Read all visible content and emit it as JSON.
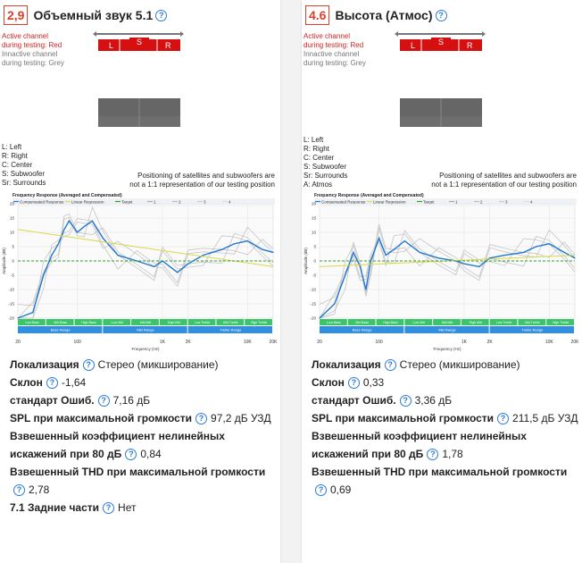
{
  "cards": [
    {
      "score": "2,9",
      "title": "Объемный звук 5.1",
      "active_label_1": "Active channel",
      "active_label_2": "during testing: Red",
      "inactive_label_1": "Innactive channel",
      "inactive_label_2": "during testing: Grey",
      "channels": [
        "L",
        "S",
        "R"
      ],
      "abbr": [
        "L: Left",
        "R: Right",
        "C: Center",
        "S: Subwoofer",
        "Sr: Surrounds"
      ],
      "note_1": "Positioning of satellites and subwoofers are",
      "note_2": "not a 1:1 representation of our testing position",
      "specs": [
        {
          "label": "Локализация",
          "value": "Стерео (микширование)"
        },
        {
          "label": "Склон",
          "value": "-1,64"
        },
        {
          "label": "стандарт Ошиб.",
          "value": "7,16 дБ"
        },
        {
          "label": "SPL при максимальной громкости",
          "value": "97,2 дБ УЗД"
        },
        {
          "label": "Взвешенный коэффициент нелинейных искажений при 80 дБ",
          "value": "0,84"
        },
        {
          "label": "Взвешенный THD при максимальной громкости",
          "value": "2,78"
        },
        {
          "label": "7.1 Задние части",
          "value": "Нет"
        }
      ]
    },
    {
      "score": "4.6",
      "title": "Высота (Атмос)",
      "active_label_1": "Active channel",
      "active_label_2": "during testing: Red",
      "inactive_label_1": "Innactive channel",
      "inactive_label_2": "during testing: Grey",
      "channels": [
        "L",
        "S",
        "R"
      ],
      "abbr": [
        "L: Left",
        "R: Right",
        "C: Center",
        "S: Subwoofer",
        "Sr: Surrounds",
        "A: Atmos"
      ],
      "note_1": "Positioning of satellites and subwoofers are",
      "note_2": "not a 1:1 representation of our testing position",
      "specs": [
        {
          "label": "Локализация",
          "value": "Стерео (микширование)"
        },
        {
          "label": "Склон",
          "value": "0,33"
        },
        {
          "label": "стандарт Ошиб.",
          "value": "3,36 дБ"
        },
        {
          "label": "SPL при максимальной громкости",
          "value": "211,5 дБ УЗД"
        },
        {
          "label": "Взвешенный коэффициент нелинейных искажений при 80 дБ",
          "value": "1,78"
        },
        {
          "label": "Взвешенный THD при максимальной громкости",
          "value": "0,69"
        }
      ]
    }
  ],
  "chart_data": [
    {
      "type": "line",
      "title": "Frequency Response (Averaged and Compensated)",
      "xlabel": "Frequency (Hz)",
      "ylabel": "Amplitude (dB)",
      "x_scale": "log",
      "xlim": [
        20,
        20000
      ],
      "ylim": [
        -20,
        20
      ],
      "x_ticks": [
        "20",
        "100",
        "1K",
        "2K",
        "10K",
        "20K"
      ],
      "y_ticks": [
        "20",
        "15",
        "10",
        "5",
        "0",
        "-5",
        "-10",
        "-15",
        "-20"
      ],
      "legend": [
        "Compensated Response",
        "Linear Regression",
        "Target",
        "1",
        "2",
        "3",
        "4"
      ],
      "bands_top": [
        "Low Bass",
        "Mid Bass",
        "High Bass",
        "Low Mid",
        "Mid Mid",
        "High Mid",
        "Low Treble",
        "Mid Treble",
        "High Treble"
      ],
      "bands_bottom": [
        "Bass Range",
        "Mid Range",
        "Treble Range"
      ],
      "series": [
        {
          "name": "Compensated Response",
          "color": "#1f77d0",
          "x": [
            20,
            30,
            40,
            50,
            60,
            70,
            80,
            100,
            120,
            150,
            200,
            300,
            500,
            800,
            1000,
            1500,
            2000,
            3000,
            5000,
            7000,
            10000,
            15000,
            20000
          ],
          "values": [
            -20,
            -18,
            -5,
            2,
            6,
            11,
            14,
            10,
            12,
            14,
            8,
            2,
            0,
            -2,
            0,
            -4,
            -1,
            2,
            4,
            6,
            7,
            4,
            3
          ]
        },
        {
          "name": "Linear Regression",
          "color": "#d8d84a",
          "x": [
            20,
            20000
          ],
          "values": [
            11,
            -2
          ]
        },
        {
          "name": "Target",
          "color": "#2ca02c",
          "x": [
            20,
            20000
          ],
          "values": [
            0,
            0
          ]
        }
      ]
    },
    {
      "type": "line",
      "title": "Frequency Response (Averaged and Compensated)",
      "xlabel": "Frequency (Hz)",
      "ylabel": "Amplitude (dB)",
      "x_scale": "log",
      "xlim": [
        20,
        20000
      ],
      "ylim": [
        -20,
        20
      ],
      "x_ticks": [
        "20",
        "100",
        "1K",
        "2K",
        "10K",
        "20K"
      ],
      "y_ticks": [
        "20",
        "15",
        "10",
        "5",
        "0",
        "-5",
        "-10",
        "-15",
        "-20"
      ],
      "legend": [
        "Compensated Response",
        "Linear Regression",
        "Target",
        "1",
        "2",
        "3",
        "4"
      ],
      "bands_top": [
        "Low Bass",
        "Mid Bass",
        "High Bass",
        "Low Mid",
        "Mid Mid",
        "High Mid",
        "Low Treble",
        "Mid Treble",
        "High Treble"
      ],
      "bands_bottom": [
        "Bass Range",
        "Mid Range",
        "Treble Range"
      ],
      "series": [
        {
          "name": "Compensated Response",
          "color": "#1f77d0",
          "x": [
            20,
            30,
            40,
            50,
            60,
            70,
            80,
            100,
            120,
            150,
            200,
            300,
            500,
            800,
            1000,
            1500,
            2000,
            3000,
            5000,
            7000,
            10000,
            15000,
            20000
          ],
          "values": [
            -20,
            -15,
            -5,
            3,
            -2,
            -10,
            0,
            8,
            2,
            4,
            7,
            3,
            1,
            0,
            -1,
            -2,
            1,
            2,
            3,
            5,
            6,
            3,
            1
          ]
        },
        {
          "name": "Linear Regression",
          "color": "#d8d84a",
          "x": [
            20,
            20000
          ],
          "values": [
            -2,
            2
          ]
        },
        {
          "name": "Target",
          "color": "#2ca02c",
          "x": [
            20,
            20000
          ],
          "values": [
            0,
            0
          ]
        }
      ]
    }
  ]
}
